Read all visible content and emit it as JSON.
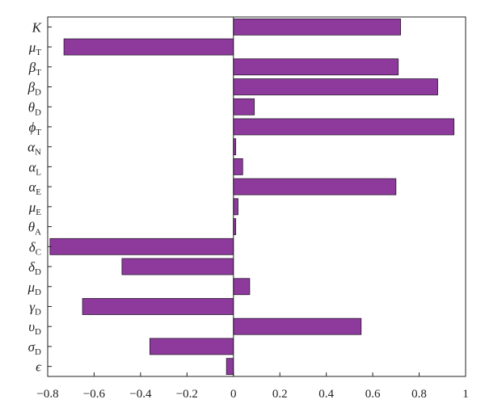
{
  "chart_data": {
    "type": "bar",
    "orientation": "horizontal",
    "categories": [
      {
        "main": "K",
        "sub": "",
        "italic": false
      },
      {
        "main": "μ",
        "sub": "T",
        "italic": true
      },
      {
        "main": "β",
        "sub": "T",
        "italic": true
      },
      {
        "main": "β",
        "sub": "D",
        "italic": true
      },
      {
        "main": "θ",
        "sub": "D",
        "italic": true
      },
      {
        "main": "ϕ",
        "sub": "T",
        "italic": true
      },
      {
        "main": "α",
        "sub": "N",
        "italic": true
      },
      {
        "main": "α",
        "sub": "L",
        "italic": true
      },
      {
        "main": "α",
        "sub": "E",
        "italic": true
      },
      {
        "main": "μ",
        "sub": "E",
        "italic": true
      },
      {
        "main": "θ",
        "sub": "A",
        "italic": true
      },
      {
        "main": "δ",
        "sub": "C",
        "italic": true
      },
      {
        "main": "δ",
        "sub": "D",
        "italic": true
      },
      {
        "main": "μ",
        "sub": "D",
        "italic": true
      },
      {
        "main": "γ",
        "sub": "D",
        "italic": true
      },
      {
        "main": "υ",
        "sub": "D",
        "italic": true
      },
      {
        "main": "σ",
        "sub": "D",
        "italic": true
      },
      {
        "main": "ϵ",
        "sub": "",
        "italic": true
      }
    ],
    "values": [
      0.72,
      -0.73,
      0.71,
      0.88,
      0.09,
      0.95,
      0.01,
      0.04,
      0.7,
      0.02,
      0.01,
      -0.79,
      -0.48,
      0.07,
      -0.65,
      0.55,
      -0.36,
      -0.03
    ],
    "xlim": [
      -0.8,
      1.0
    ],
    "xticks": [
      -0.8,
      -0.6,
      -0.4,
      -0.2,
      0,
      0.2,
      0.4,
      0.6,
      0.8,
      1
    ],
    "xtick_labels": [
      "−0.8",
      "−0.6",
      "−0.4",
      "−0.2",
      "0",
      "0.2",
      "0.4",
      "0.6",
      "0.8",
      "1"
    ],
    "title": "",
    "xlabel": "",
    "ylabel": "",
    "grid": false,
    "colors": {
      "bar_fill": "#8e3a9d",
      "bar_edge": "#2a1a30",
      "axis": "#222222"
    }
  }
}
